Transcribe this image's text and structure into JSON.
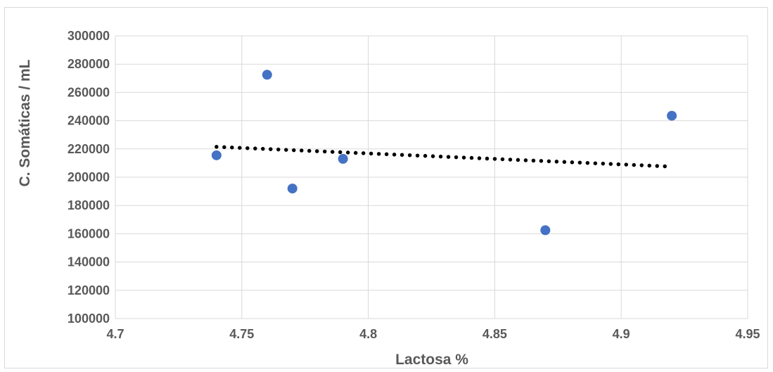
{
  "chart_data": {
    "type": "scatter",
    "xlabel": "Lactosa %",
    "ylabel": "C. Somáticas / mL",
    "xlim": [
      4.7,
      4.95
    ],
    "ylim": [
      100000,
      300000
    ],
    "x_ticks": [
      "4.7",
      "4.75",
      "4.8",
      "4.85",
      "4.9",
      "4.95"
    ],
    "y_ticks": [
      "100000",
      "120000",
      "140000",
      "160000",
      "180000",
      "200000",
      "220000",
      "240000",
      "260000",
      "280000",
      "300000"
    ],
    "grid": true,
    "legend": "none",
    "series": [
      {
        "points": [
          {
            "x": 4.74,
            "y": 215500
          },
          {
            "x": 4.76,
            "y": 272500
          },
          {
            "x": 4.77,
            "y": 192000
          },
          {
            "x": 4.79,
            "y": 213000
          },
          {
            "x": 4.87,
            "y": 162500
          },
          {
            "x": 4.92,
            "y": 243500
          }
        ],
        "color": "#4472c4"
      }
    ],
    "trendline": {
      "type": "linear",
      "style": "dotted",
      "color": "#000000",
      "from": {
        "x": 4.74,
        "y": 221500
      },
      "to": {
        "x": 4.92,
        "y": 207500
      }
    }
  }
}
